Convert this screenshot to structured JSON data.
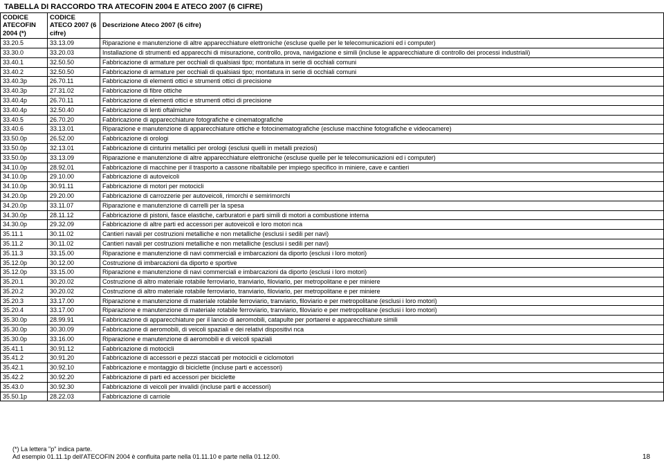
{
  "title": "TABELLA DI RACCORDO TRA ATECOFIN 2004 E ATECO 2007 (6 CIFRE)",
  "columns": [
    "CODICE ATECOFIN 2004 (*)",
    "CODICE ATECO 2007 (6 cifre)",
    "Descrizione Ateco 2007 (6 cifre)"
  ],
  "rows": [
    [
      "33.20.5",
      "33.13.09",
      "Riparazione e manutenzione di altre apparecchiature elettroniche (escluse quelle per le telecomunicazioni ed i computer)"
    ],
    [
      "33.30.0",
      "33.20.03",
      "Installazione di strumenti ed apparecchi di misurazione, controllo, prova, navigazione e simili (incluse le apparecchiature di controllo dei processi industriali)"
    ],
    [
      "33.40.1",
      "32.50.50",
      "Fabbricazione di armature per occhiali di qualsiasi tipo; montatura in serie di occhiali comuni"
    ],
    [
      "33.40.2",
      "32.50.50",
      "Fabbricazione di armature per occhiali di qualsiasi tipo; montatura in serie di occhiali comuni"
    ],
    [
      "33.40.3p",
      "26.70.11",
      "Fabbricazione di elementi ottici e strumenti ottici di precisione"
    ],
    [
      "33.40.3p",
      "27.31.02",
      "Fabbricazione di fibre ottiche"
    ],
    [
      "33.40.4p",
      "26.70.11",
      "Fabbricazione di elementi ottici e strumenti ottici di precisione"
    ],
    [
      "33.40.4p",
      "32.50.40",
      "Fabbricazione di lenti oftalmiche"
    ],
    [
      "33.40.5",
      "26.70.20",
      "Fabbricazione di apparecchiature fotografiche e cinematografiche"
    ],
    [
      "33.40.6",
      "33.13.01",
      "Riparazione e manutenzione di apparecchiature ottiche e fotocinematografiche (escluse macchine fotografiche e videocamere)"
    ],
    [
      "33.50.0p",
      "26.52.00",
      "Fabbricazione di orologi"
    ],
    [
      "33.50.0p",
      "32.13.01",
      "Fabbricazione di cinturini metallici per orologi (esclusi quelli in metalli preziosi)"
    ],
    [
      "33.50.0p",
      "33.13.09",
      "Riparazione e manutenzione di altre apparecchiature elettroniche (escluse quelle per le telecomunicazioni ed i computer)"
    ],
    [
      "34.10.0p",
      "28.92.01",
      "Fabbricazione di macchine per il trasporto a cassone ribaltabile per impiego specifico in miniere, cave e cantieri"
    ],
    [
      "34.10.0p",
      "29.10.00",
      "Fabbricazione di autoveicoli"
    ],
    [
      "34.10.0p",
      "30.91.11",
      "Fabbricazione di motori per motocicli"
    ],
    [
      "34.20.0p",
      "29.20.00",
      "Fabbricazione di carrozzerie per autoveicoli, rimorchi e semirimorchi"
    ],
    [
      "34.20.0p",
      "33.11.07",
      "Riparazione e manutenzione di carrelli per la spesa"
    ],
    [
      "34.30.0p",
      "28.11.12",
      "Fabbricazione di pistoni, fasce elastiche, carburatori e parti simili di motori a combustione interna"
    ],
    [
      "34.30.0p",
      "29.32.09",
      "Fabbricazione di altre parti ed accessori per autoveicoli e loro motori nca"
    ],
    [
      "35.11.1",
      "30.11.02",
      "Cantieri navali per costruzioni metalliche e non metalliche (esclusi i sedili per navi)"
    ],
    [
      "35.11.2",
      "30.11.02",
      "Cantieri navali per costruzioni metalliche e non metalliche (esclusi i sedili per navi)"
    ],
    [
      "35.11.3",
      "33.15.00",
      "Riparazione e manutenzione di navi commerciali e imbarcazioni da diporto (esclusi i loro motori)"
    ],
    [
      "35.12.0p",
      "30.12.00",
      "Costruzione di imbarcazioni da diporto e sportive"
    ],
    [
      "35.12.0p",
      "33.15.00",
      "Riparazione e manutenzione di navi commerciali e imbarcazioni da diporto (esclusi i loro motori)"
    ],
    [
      "35.20.1",
      "30.20.02",
      "Costruzione di altro materiale rotabile ferroviario, tranviario, filoviario, per metropolitane e per miniere"
    ],
    [
      "35.20.2",
      "30.20.02",
      "Costruzione di altro materiale rotabile ferroviario, tranviario, filoviario, per metropolitane e per miniere"
    ],
    [
      "35.20.3",
      "33.17.00",
      "Riparazione e manutenzione di materiale rotabile ferroviario, tranviario, filoviario e per metropolitane (esclusi i loro motori)"
    ],
    [
      "35.20.4",
      "33.17.00",
      "Riparazione e manutenzione di materiale rotabile ferroviario, tranviario, filoviario e per metropolitane (esclusi i loro motori)"
    ],
    [
      "35.30.0p",
      "28.99.91",
      "Fabbricazione di apparecchiature per il lancio di aeromobili, catapulte per portaerei e apparecchiature simili"
    ],
    [
      "35.30.0p",
      "30.30.09",
      "Fabbricazione di aeromobili, di veicoli spaziali e dei relativi dispositivi nca"
    ],
    [
      "35.30.0p",
      "33.16.00",
      "Riparazione e manutenzione di aeromobili e di veicoli spaziali"
    ],
    [
      "35.41.1",
      "30.91.12",
      "Fabbricazione di motocicli"
    ],
    [
      "35.41.2",
      "30.91.20",
      "Fabbricazione di accessori e pezzi staccati per motocicli e ciclomotori"
    ],
    [
      "35.42.1",
      "30.92.10",
      "Fabbricazione e montaggio di biciclette (incluse parti e accessori)"
    ],
    [
      "35.42.2",
      "30.92.20",
      "Fabbricazione di parti ed accessori per biciclette"
    ],
    [
      "35.43.0",
      "30.92.30",
      "Fabbricazione di veicoli per invalidi (incluse parti e accessori)"
    ],
    [
      "35.50.1p",
      "28.22.03",
      "Fabbricazione di carriole"
    ]
  ],
  "footer_line1": "(*) La lettera \"p\" indica parte.",
  "footer_line2": "Ad esempio 01.11.1p dell'ATECOFIN 2004 è confluita parte nella 01.11.10 e parte nella 01.12.00.",
  "page_number": "18"
}
